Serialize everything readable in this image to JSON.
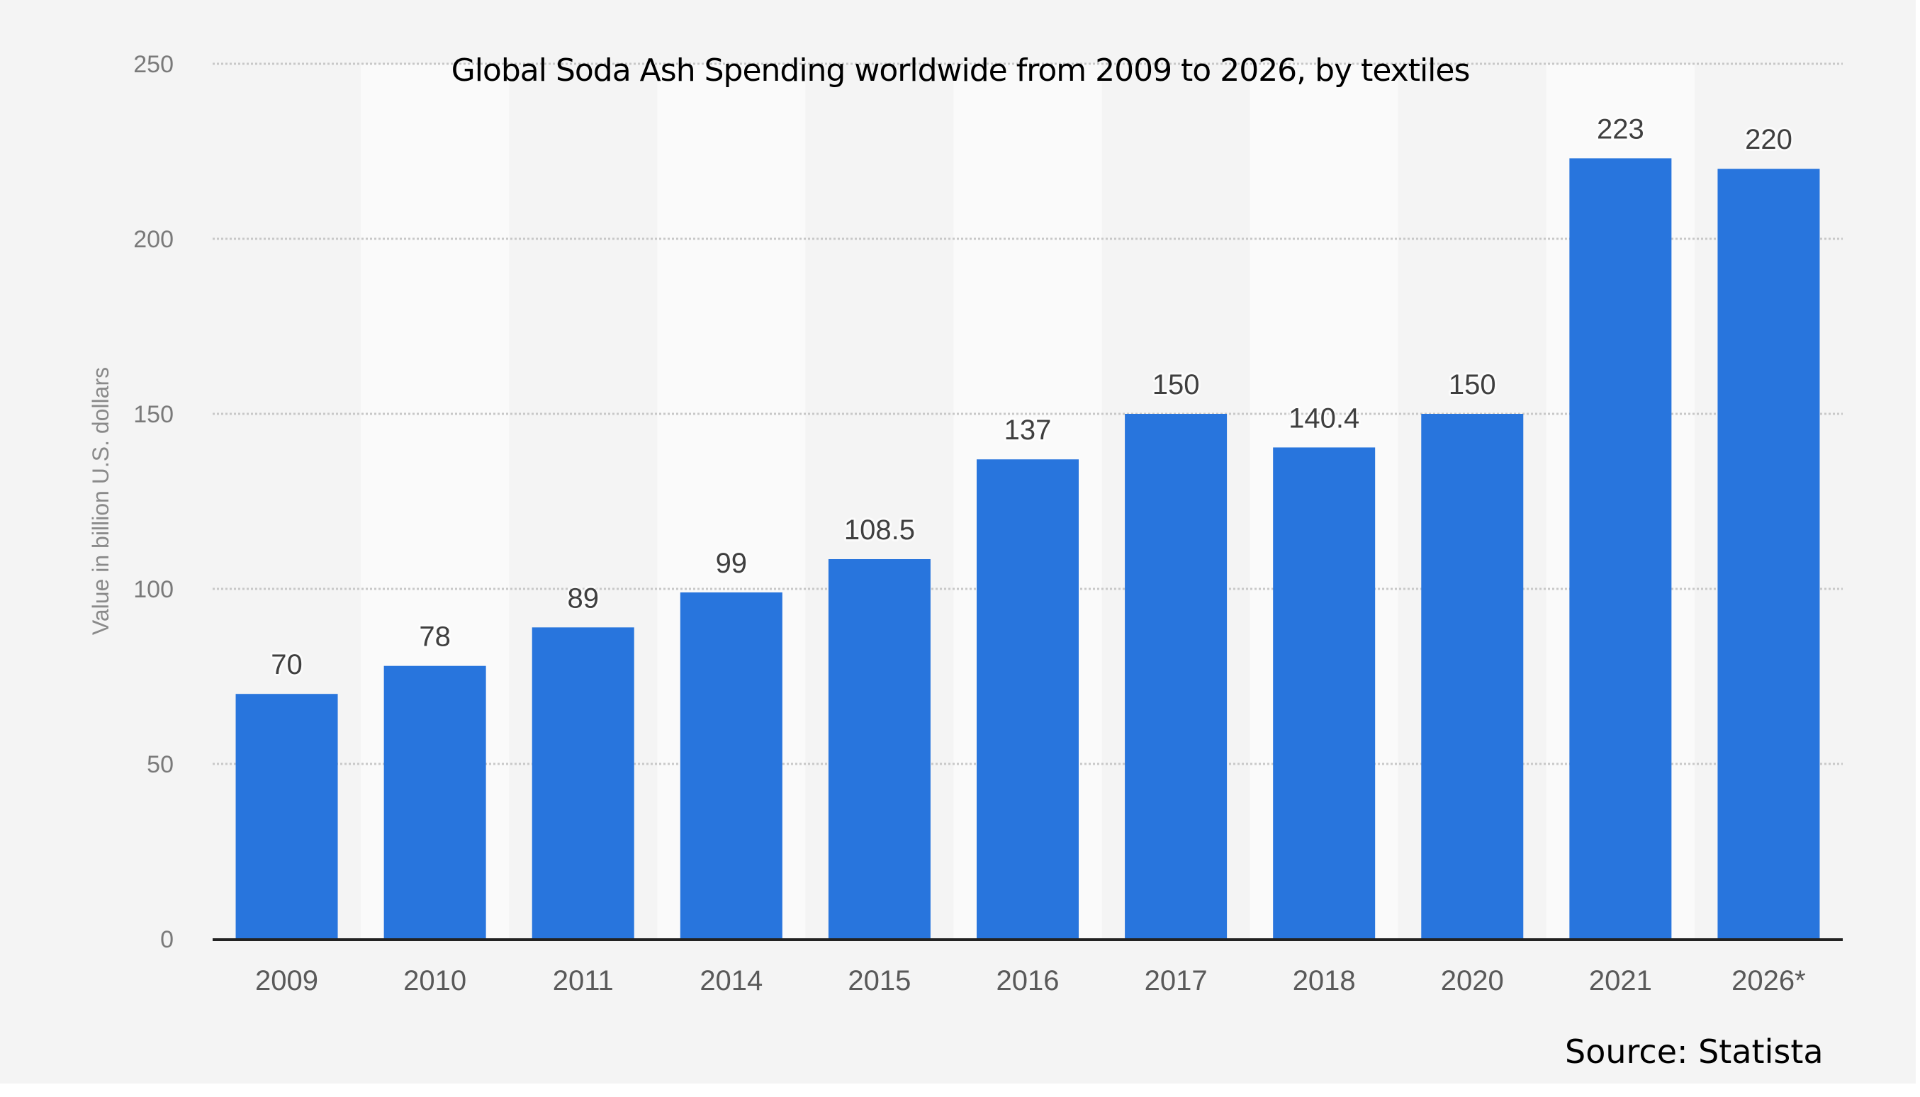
{
  "chart_data": {
    "type": "bar",
    "title": "Global Soda Ash Spending worldwide from 2009 to 2026, by textiles",
    "xlabel": "",
    "ylabel": "Value in billion U.S. dollars",
    "categories": [
      "2009",
      "2010",
      "2011",
      "2014",
      "2015",
      "2016",
      "2017",
      "2018",
      "2020",
      "2021",
      "2026*"
    ],
    "values": [
      70,
      78,
      89,
      99,
      108.5,
      137,
      150,
      140.4,
      150,
      223,
      220
    ],
    "data_labels": [
      "70",
      "78",
      "89",
      "99",
      "108.5",
      "137",
      "150",
      "140.4",
      "150",
      "223",
      "220"
    ],
    "ylim": [
      0,
      250
    ],
    "yticks": [
      0,
      50,
      100,
      150,
      200,
      250
    ],
    "ytick_labels": [
      "0",
      "50",
      "100",
      "150",
      "200",
      "250"
    ],
    "grid": true,
    "legend": null,
    "source": "Source: Statista",
    "colors": {
      "bar": "#2875dd",
      "background": "#f4f4f4",
      "stripe": "#fafafa",
      "axis": "#222222"
    }
  }
}
